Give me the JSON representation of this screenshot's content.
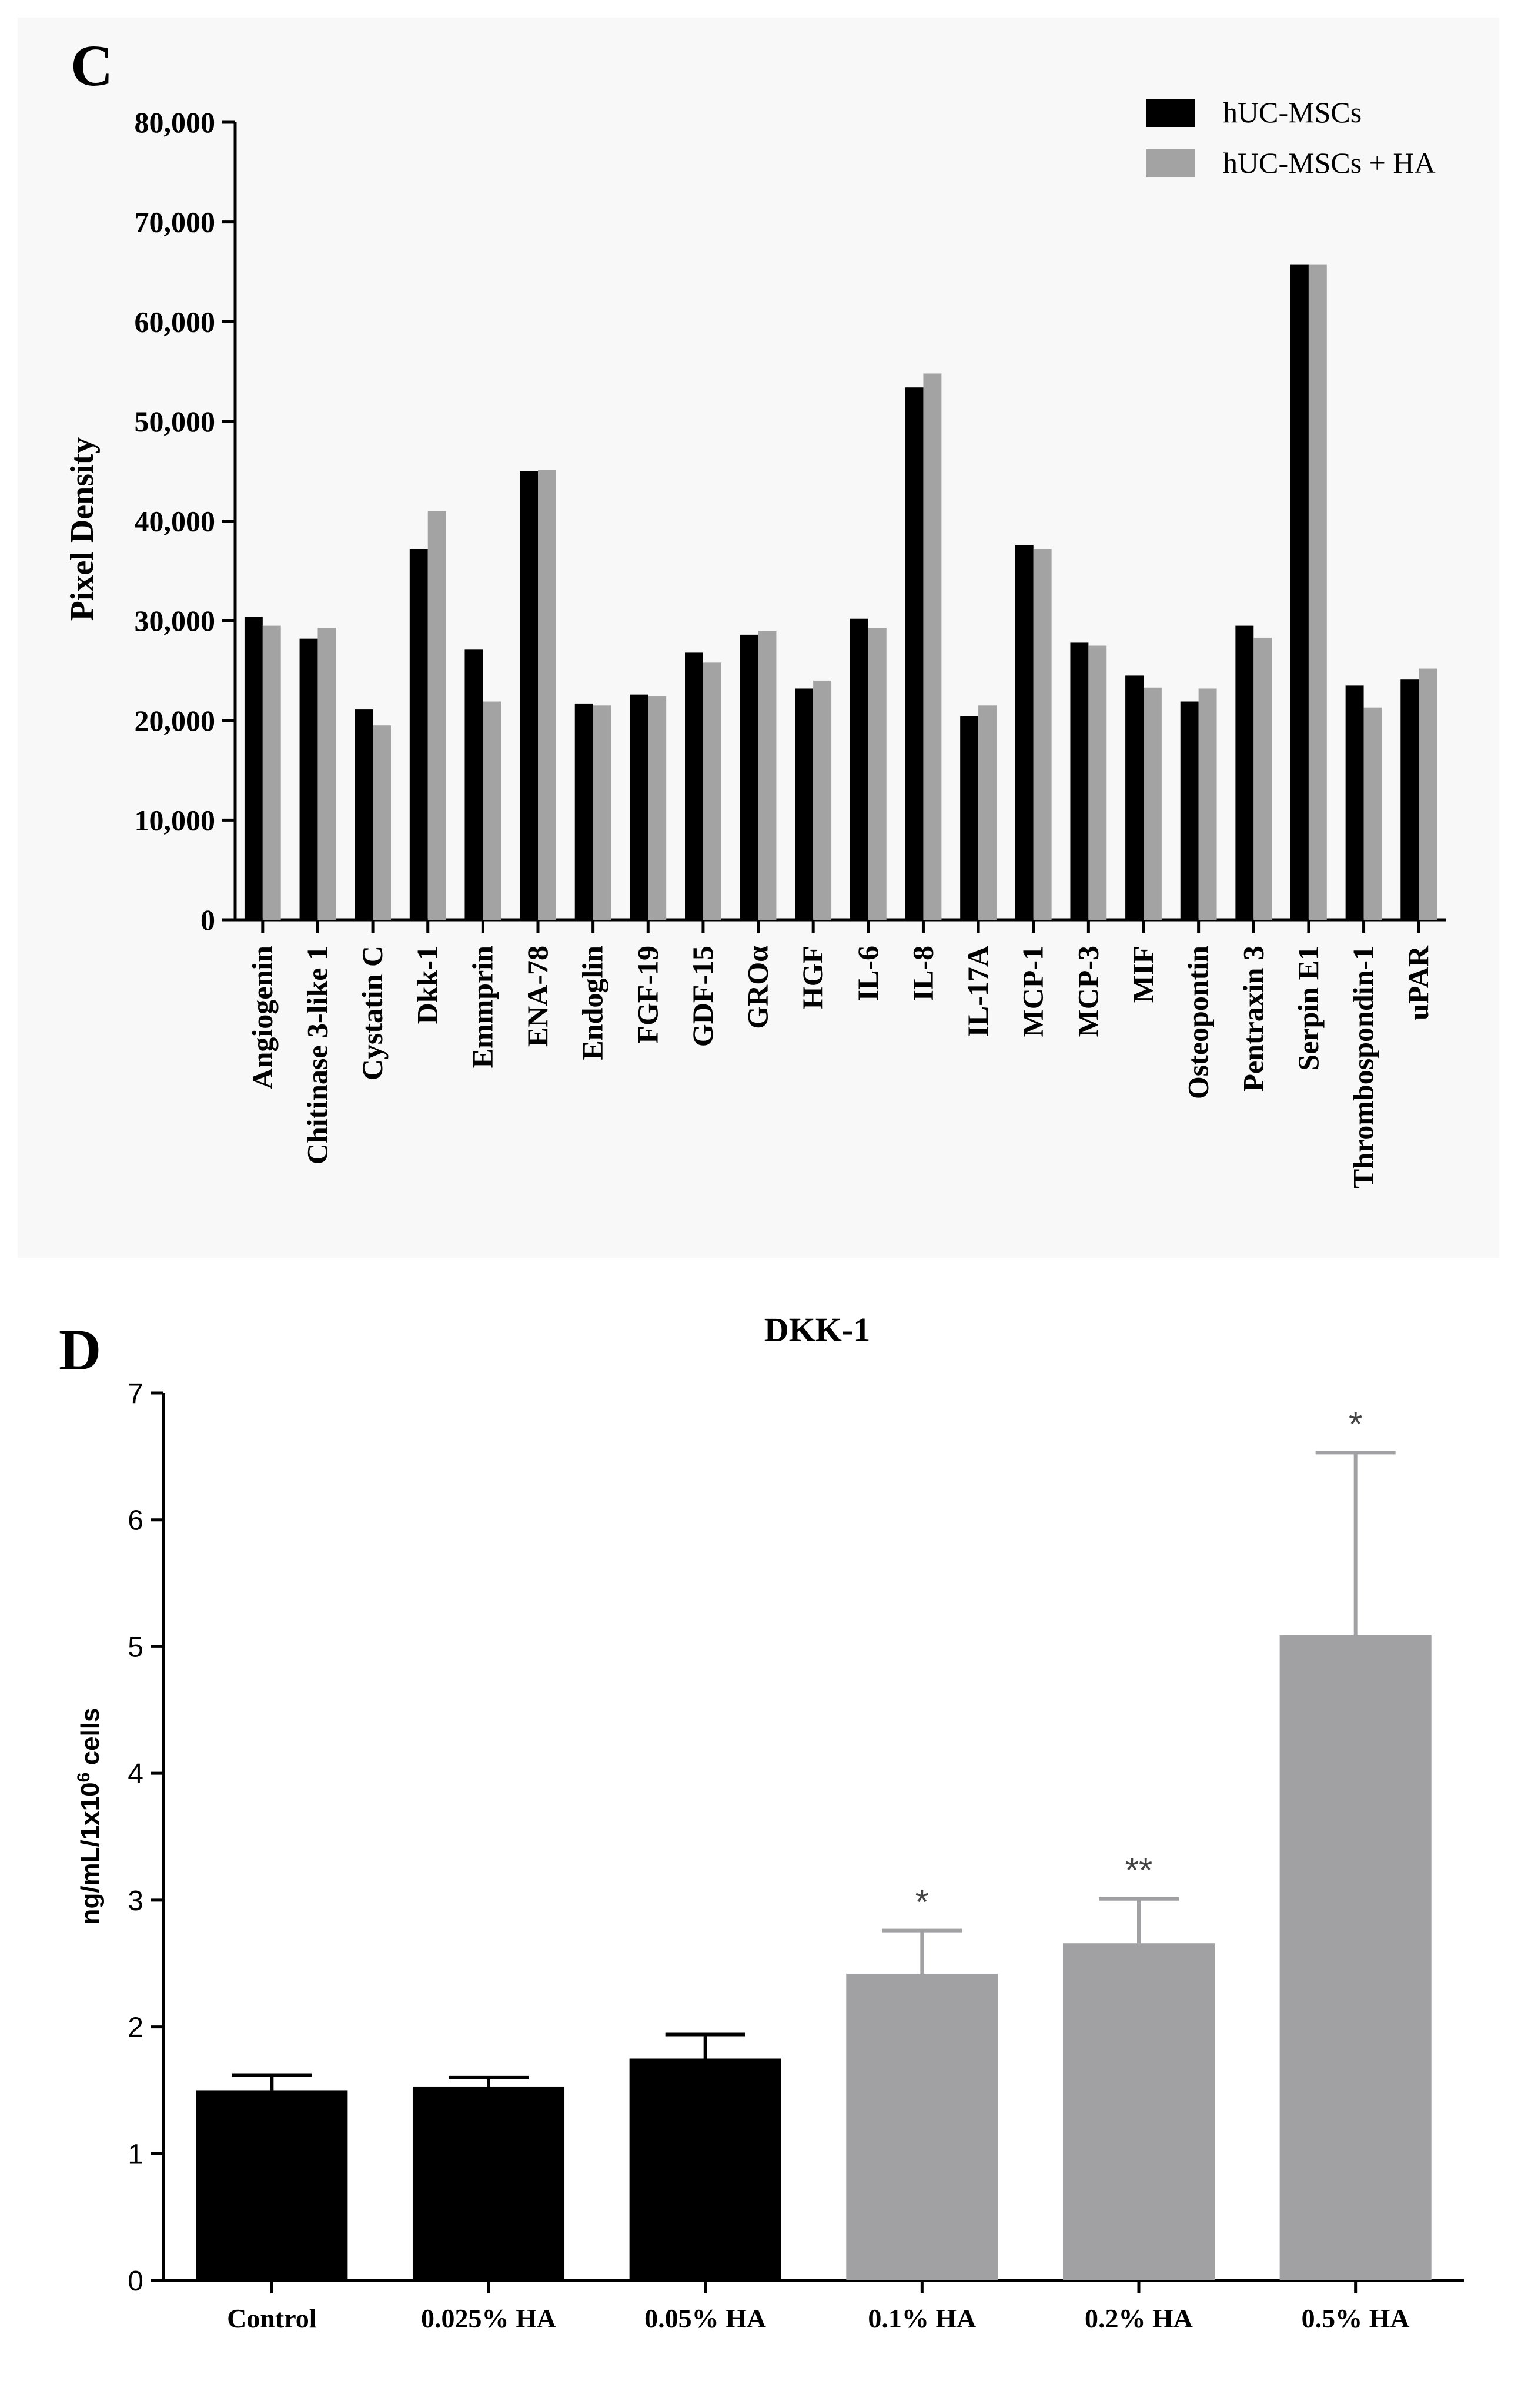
{
  "chart_data": [
    {
      "panel_label": "C",
      "type": "bar",
      "title": "",
      "xlabel": "",
      "ylabel": "Pixel Density",
      "ylim": [
        0,
        80000
      ],
      "yticks": [
        0,
        10000,
        20000,
        30000,
        40000,
        50000,
        60000,
        70000,
        80000
      ],
      "ytick_labels": [
        "0",
        "10,000",
        "20,000",
        "30,000",
        "40,000",
        "50,000",
        "60,000",
        "70,000",
        "80,000"
      ],
      "legend_position": "top-right",
      "categories": [
        "Angiogenin",
        "Chitinase 3-like 1",
        "Cystatin C",
        "Dkk-1",
        "Emmprin",
        "ENA-78",
        "Endoglin",
        "FGF-19",
        "GDF-15",
        "GROα",
        "HGF",
        "IL-6",
        "IL-8",
        "IL-17A",
        "MCP-1",
        "MCP-3",
        "MIF",
        "Osteopontin",
        "Pentraxin 3",
        "Serpin E1",
        "Thrombospondin-1",
        "uPAR"
      ],
      "series": [
        {
          "name": "hUC-MSCs",
          "color": "#000000",
          "values": [
            30400,
            28200,
            21100,
            37200,
            27100,
            45000,
            21700,
            22600,
            26800,
            28600,
            23200,
            30200,
            53400,
            20400,
            37600,
            27800,
            24500,
            21900,
            29500,
            65700,
            23500,
            24100
          ]
        },
        {
          "name": "hUC-MSCs + HA",
          "color": "#a3a3a3",
          "values": [
            29500,
            29300,
            19500,
            41000,
            21900,
            45100,
            21500,
            22400,
            25800,
            29000,
            24000,
            29300,
            54800,
            21500,
            37200,
            27500,
            23300,
            23200,
            28300,
            65700,
            21300,
            25200
          ]
        }
      ]
    },
    {
      "panel_label": "D",
      "type": "bar",
      "title": "DKK-1",
      "xlabel": "",
      "ylabel_main": "ng/mL/1x10",
      "ylabel_sup": "6",
      "ylabel_tail": " cells",
      "ylim": [
        0,
        7
      ],
      "yticks": [
        0,
        1,
        2,
        3,
        4,
        5,
        6,
        7
      ],
      "ytick_labels": [
        "0",
        "1",
        "2",
        "3",
        "4",
        "5",
        "6",
        "7"
      ],
      "categories": [
        "Control",
        "0.025% HA",
        "0.05% HA",
        "0.1% HA",
        "0.2% HA",
        "0.5% HA"
      ],
      "values": [
        1.5,
        1.53,
        1.75,
        2.42,
        2.66,
        5.09
      ],
      "errors": [
        0.12,
        0.07,
        0.19,
        0.34,
        0.35,
        1.44
      ],
      "colors": [
        "#000000",
        "#000000",
        "#000000",
        "#a1a1a4",
        "#a1a1a4",
        "#a1a1a4"
      ],
      "significance": [
        "",
        "",
        "",
        "*",
        "**",
        "*"
      ]
    }
  ]
}
